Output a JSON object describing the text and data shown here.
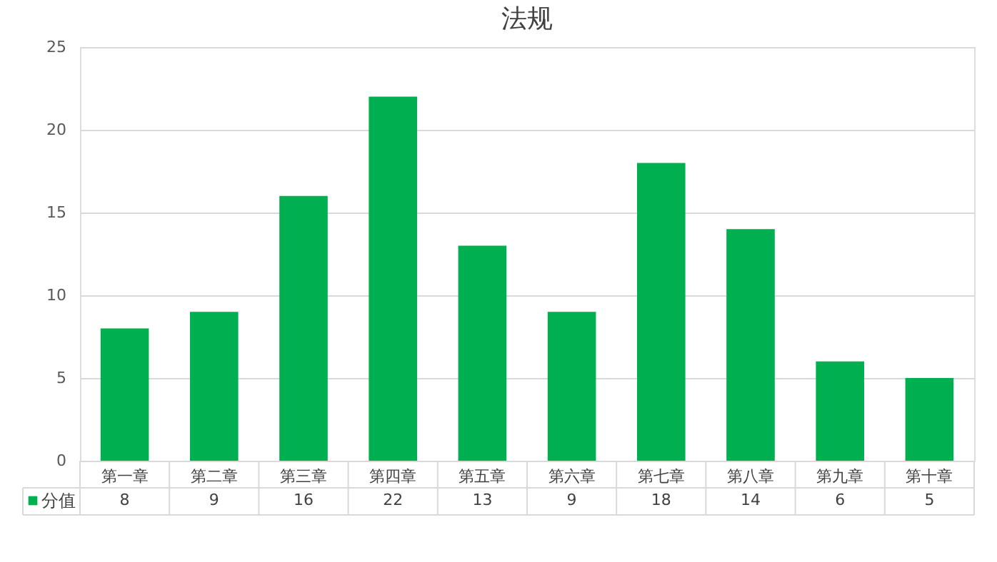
{
  "chart_data": {
    "type": "bar",
    "title": "法规",
    "categories": [
      "第一章",
      "第二章",
      "第三章",
      "第四章",
      "第五章",
      "第六章",
      "第七章",
      "第八章",
      "第九章",
      "第十章"
    ],
    "series": [
      {
        "name": "分值",
        "color": "#00b050",
        "values": [
          8,
          9,
          16,
          22,
          13,
          9,
          18,
          14,
          6,
          5
        ]
      }
    ],
    "ylim": [
      0,
      25
    ],
    "yticks": [
      0,
      5,
      10,
      15,
      20,
      25
    ],
    "grid": "y",
    "data_labels": true,
    "legend": "bottom"
  }
}
